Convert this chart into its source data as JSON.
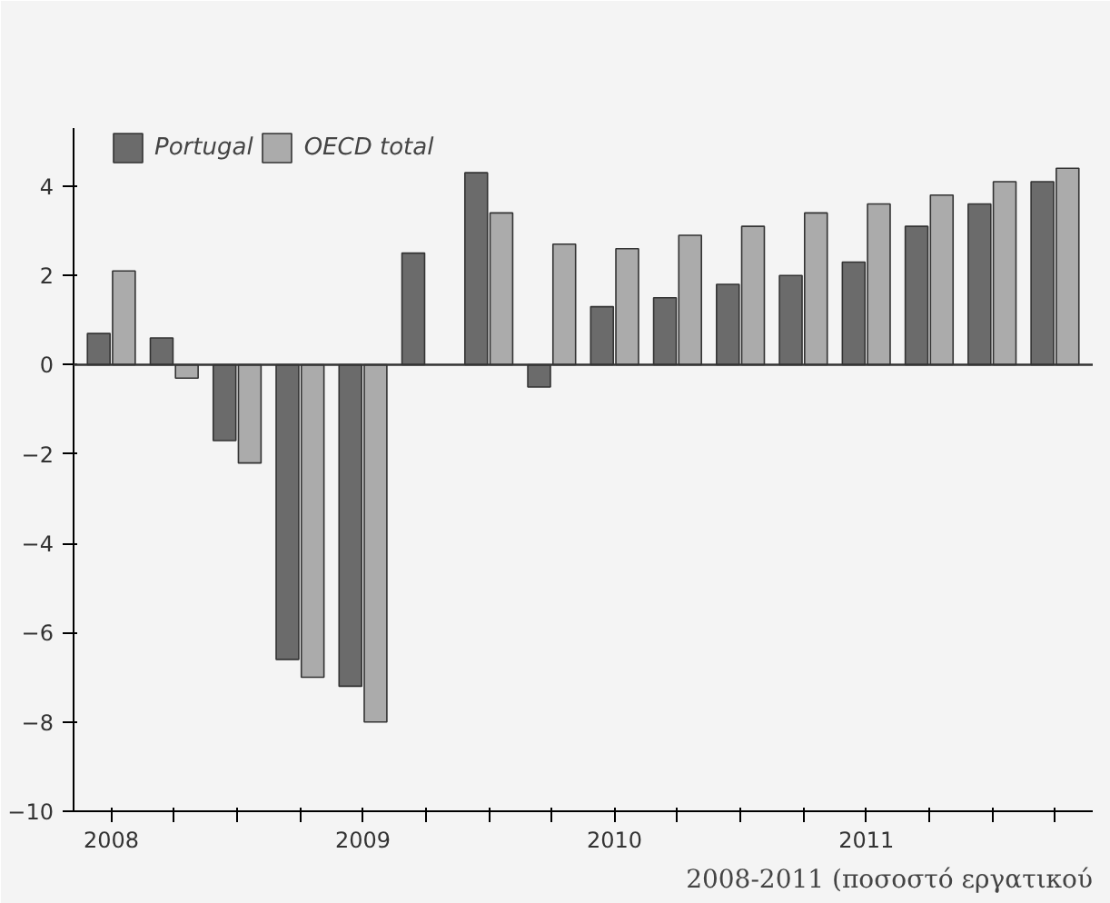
{
  "chart_data": {
    "type": "bar",
    "categories": [
      "2008",
      null,
      null,
      null,
      "2009",
      null,
      null,
      null,
      "2010",
      null,
      null,
      null,
      "2011",
      null,
      null,
      null
    ],
    "series": [
      {
        "name": "Portugal",
        "color": "#6b6b6b",
        "values": [
          0.7,
          0.6,
          -1.7,
          -6.6,
          -7.2,
          2.5,
          4.3,
          -0.5,
          1.3,
          1.5,
          1.8,
          2.0,
          2.3,
          3.1,
          3.6,
          4.1
        ]
      },
      {
        "name": "OECD total",
        "color": "#ababab",
        "values": [
          2.1,
          -0.3,
          -2.2,
          -7.0,
          -8.0,
          null,
          3.4,
          2.7,
          2.6,
          2.9,
          3.1,
          3.4,
          3.6,
          3.8,
          4.1,
          4.4
        ]
      }
    ],
    "ylim": [
      -10,
      5.3
    ],
    "yticks": [
      -10,
      -8,
      -6,
      -4,
      -2,
      0,
      2,
      4
    ],
    "ref_lines": [
      {
        "axis": "y",
        "value": 0,
        "color": "#333333"
      }
    ],
    "annotations": [
      "2008-2011 (ποσοστό εργατικού"
    ],
    "legend": "top",
    "grid": false
  }
}
